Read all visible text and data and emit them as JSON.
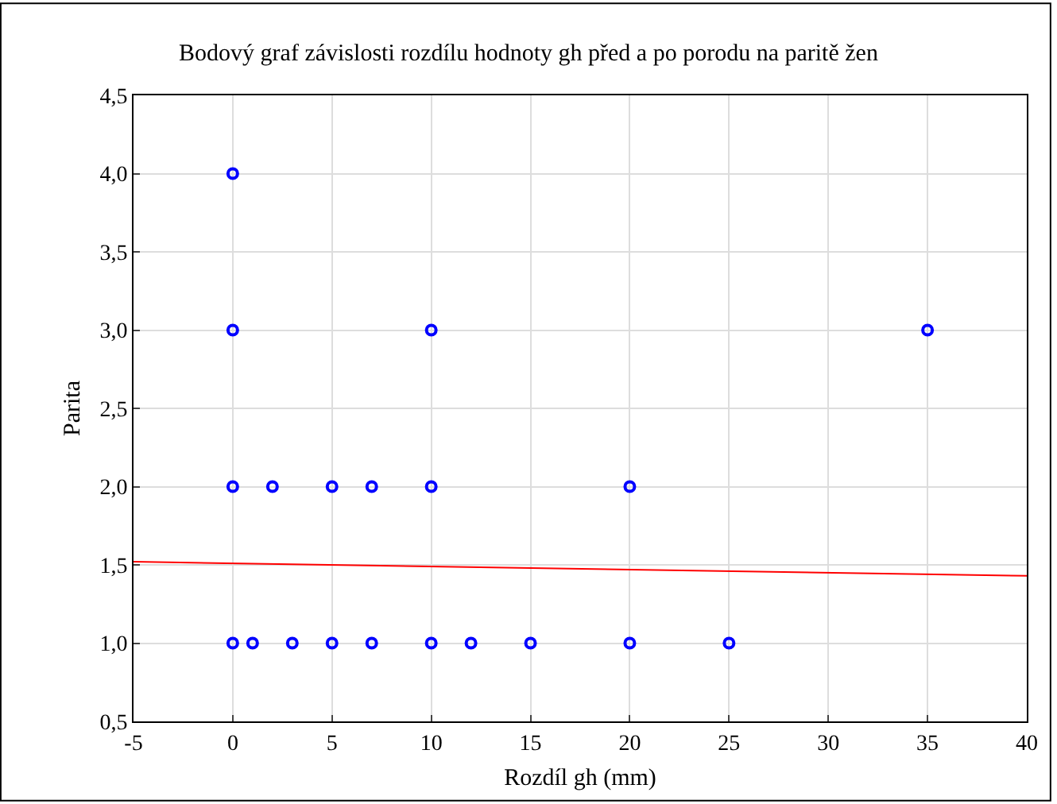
{
  "chart_data": {
    "type": "scatter",
    "title": "Bodový graf závislosti rozdílu hodnoty gh před a po porodu na paritě žen",
    "xlabel": "Rozdíl gh (mm)",
    "ylabel": "Parita",
    "series": [
      {
        "color": "#0000ff",
        "marker": "circle",
        "x": [
          0,
          0,
          0,
          0,
          1,
          2,
          3,
          5,
          5,
          7,
          7,
          10,
          10,
          10,
          12,
          15,
          20,
          20,
          25,
          35
        ],
        "values": [
          1,
          2,
          3,
          4,
          1,
          2,
          1,
          1,
          2,
          1,
          2,
          1,
          2,
          3,
          1,
          1,
          1,
          2,
          1,
          3
        ]
      },
      {
        "type": "line",
        "color": "#ff0000",
        "marker": "none",
        "line_style": "solid",
        "x": [
          -5,
          40
        ],
        "values": [
          1.52,
          1.43
        ]
      }
    ],
    "xlim": [
      -5,
      40
    ],
    "xticks": [
      -5,
      0,
      5,
      10,
      15,
      20,
      25,
      30,
      35,
      40
    ],
    "ylim": [
      0.5,
      4.5
    ],
    "yticks": [
      {
        "value": 0.5,
        "label": "0,5"
      },
      {
        "value": 1,
        "label": "1,0"
      },
      {
        "value": 1.5,
        "label": "1,5"
      },
      {
        "value": 2,
        "label": "2,0"
      },
      {
        "value": 2.5,
        "label": "2,5"
      },
      {
        "value": 3,
        "label": "3,0"
      },
      {
        "value": 3.5,
        "label": "3,5"
      },
      {
        "value": 4,
        "label": "4,0"
      },
      {
        "value": 4.5,
        "label": "4,5"
      }
    ],
    "grid": true,
    "legend": false
  }
}
